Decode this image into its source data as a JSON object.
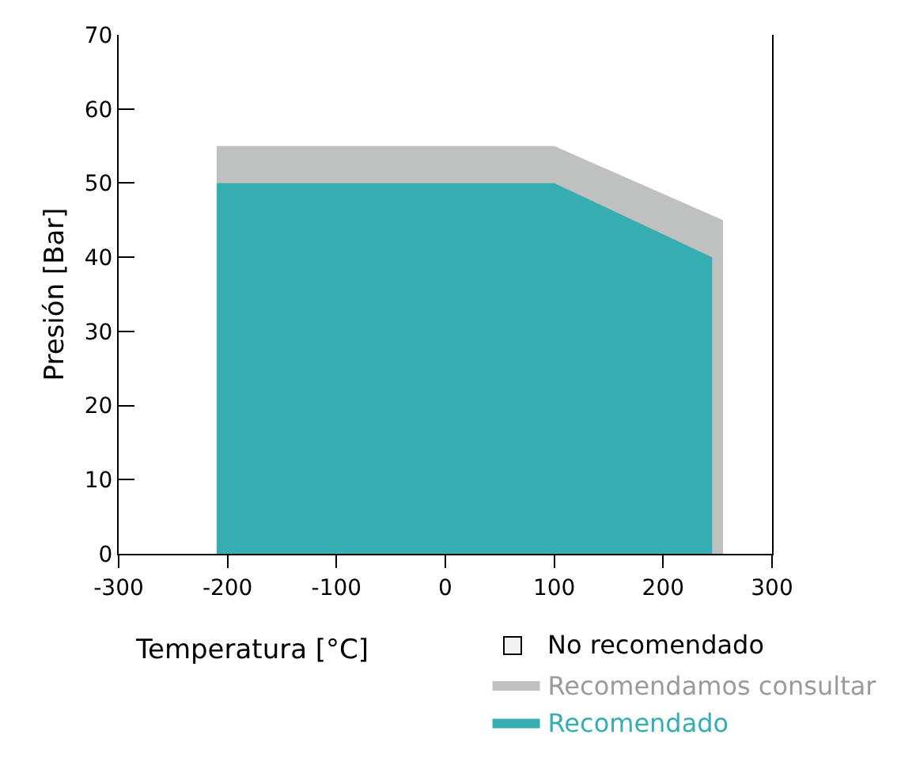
{
  "chart_data": {
    "type": "area",
    "xlabel": "Temperatura [°C]",
    "ylabel": "Presión [Bar]",
    "xlim": [
      -300,
      300
    ],
    "xticks": [
      -300,
      -200,
      -100,
      0,
      100,
      200,
      300
    ],
    "ylim": [
      0,
      70
    ],
    "yticks": [
      0,
      10,
      20,
      30,
      40,
      50,
      60,
      70
    ],
    "legend": "bottom right",
    "annotations": [
      "No recomendado"
    ],
    "series": [
      {
        "name": "Recomendamos consultar",
        "color": "#bfc1c0",
        "x": [
          -210,
          100,
          255
        ],
        "values": [
          55,
          55,
          45
        ]
      },
      {
        "name": "Recomendado",
        "color": "#36adb0",
        "x": [
          -210,
          100,
          245
        ],
        "values": [
          50,
          50,
          40
        ]
      }
    ]
  }
}
